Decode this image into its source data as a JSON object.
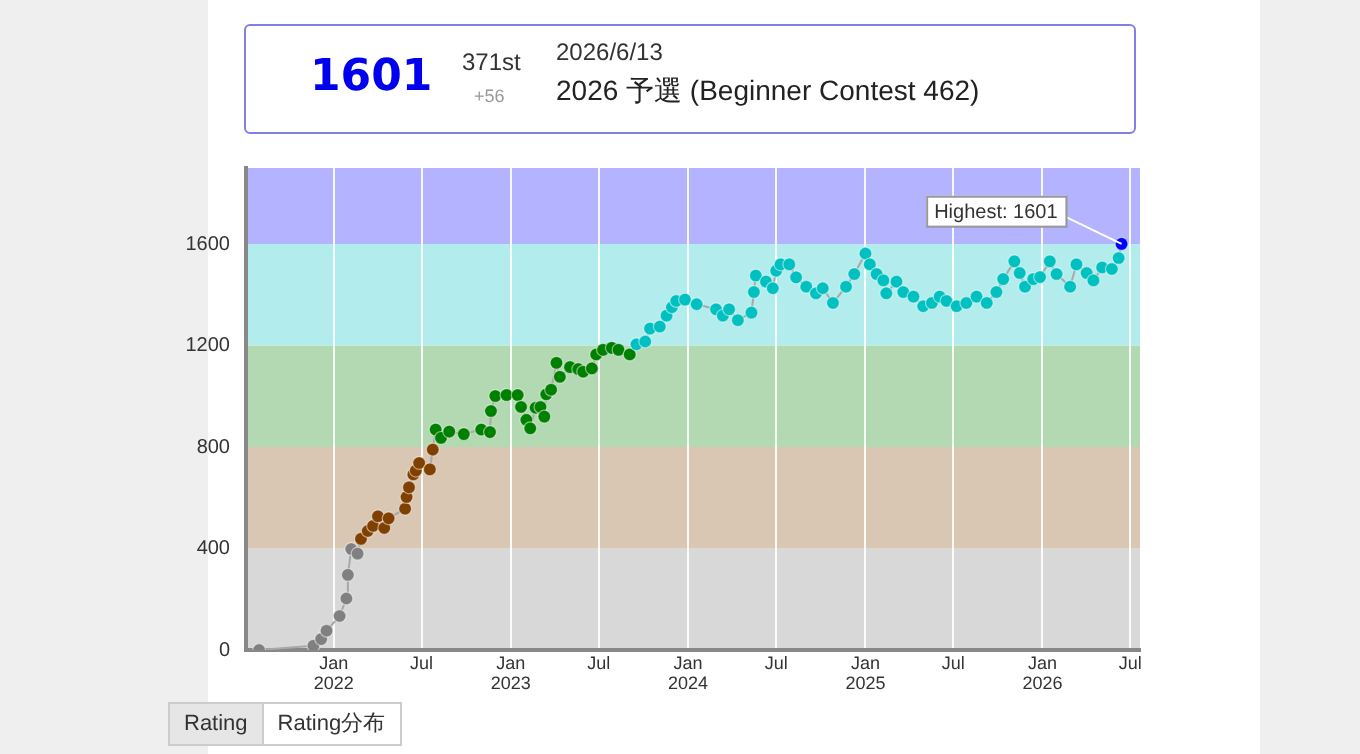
{
  "chart_data": {
    "type": "line",
    "title": "2026 予選 (Beginner Contest 462)",
    "annotations": [
      "1601",
      "371st",
      "+56",
      "2026/6/13",
      {
        "text": "Highest: 1601",
        "x": "2026-06-13",
        "y": 1601
      },
      "Rating",
      "Rating分布"
    ],
    "xlim": [
      "2021-07-04",
      "2026-07-21"
    ],
    "xticks": [
      {
        "value": "2022-01-01",
        "label": "Jan 2022"
      },
      {
        "value": "2022-07-01",
        "label": "Jul"
      },
      {
        "value": "2023-01-01",
        "label": "Jan 2023"
      },
      {
        "value": "2023-07-01",
        "label": "Jul"
      },
      {
        "value": "2024-01-01",
        "label": "Jan 2024"
      },
      {
        "value": "2024-07-01",
        "label": "Jul"
      },
      {
        "value": "2025-01-01",
        "label": "Jan 2025"
      },
      {
        "value": "2025-07-01",
        "label": "Jul"
      },
      {
        "value": "2026-01-01",
        "label": "Jan 2026"
      },
      {
        "value": "2026-07-01",
        "label": "Jul"
      }
    ],
    "ylim": [
      0,
      1900
    ],
    "yticks": [
      0,
      400,
      800,
      1200,
      1600
    ],
    "grid": "x",
    "legend": false,
    "marker": "circle",
    "line_style": "solid",
    "bands": [
      {
        "axis": "y",
        "from": 0,
        "to": 400,
        "color": "#d8d8d8"
      },
      {
        "axis": "y",
        "from": 400,
        "to": 800,
        "color": "#d9c6b3"
      },
      {
        "axis": "y",
        "from": 800,
        "to": 1200,
        "color": "#b3d9b3"
      },
      {
        "axis": "y",
        "from": 1200,
        "to": 1600,
        "color": "#b3ecec"
      },
      {
        "axis": "y",
        "from": 1600,
        "to": 1900,
        "color": "#b3b3ff"
      }
    ],
    "series": [
      {
        "color": "#a8a8a8",
        "x": [
          "2021-07-31",
          "2021-11-20",
          "2021-12-06",
          "2021-12-17",
          "2022-01-13",
          "2022-01-27",
          "2022-01-30",
          "2022-02-06",
          "2022-02-19",
          "2022-02-26",
          "2022-03-12",
          "2022-03-23",
          "2022-04-02",
          "2022-04-15",
          "2022-04-24",
          "2022-05-28",
          "2022-05-31",
          "2022-06-05",
          "2022-06-14",
          "2022-06-19",
          "2022-06-26",
          "2022-07-18",
          "2022-07-24",
          "2022-07-30",
          "2022-08-10",
          "2022-08-27",
          "2022-09-26",
          "2022-11-01",
          "2022-11-19",
          "2022-11-21",
          "2022-11-30",
          "2022-12-23",
          "2023-01-15",
          "2023-01-22",
          "2023-02-02",
          "2023-02-10",
          "2023-02-21",
          "2023-03-03",
          "2023-03-11",
          "2023-03-15",
          "2023-03-25",
          "2023-04-05",
          "2023-04-12",
          "2023-05-03",
          "2023-05-20",
          "2023-05-30",
          "2023-06-17",
          "2023-06-26",
          "2023-07-10",
          "2023-07-28",
          "2023-08-11",
          "2023-09-03",
          "2023-09-17",
          "2023-10-05",
          "2023-10-15",
          "2023-11-04",
          "2023-11-18",
          "2023-11-29",
          "2023-12-08",
          "2023-12-26",
          "2024-01-19",
          "2024-02-28",
          "2024-03-13",
          "2024-03-26",
          "2024-04-13",
          "2024-05-11",
          "2024-05-16",
          "2024-05-20",
          "2024-06-10",
          "2024-06-24",
          "2024-07-01",
          "2024-07-10",
          "2024-07-28",
          "2024-08-11",
          "2024-09-01",
          "2024-09-21",
          "2024-10-05",
          "2024-10-26",
          "2024-11-22",
          "2024-12-09",
          "2025-01-01",
          "2025-01-10",
          "2025-01-24",
          "2025-02-07",
          "2025-02-13",
          "2025-03-06",
          "2025-03-20",
          "2025-04-10",
          "2025-04-30",
          "2025-05-18",
          "2025-06-03",
          "2025-06-17",
          "2025-07-08",
          "2025-07-28",
          "2025-08-18",
          "2025-09-08",
          "2025-09-28",
          "2025-10-12",
          "2025-11-04",
          "2025-11-15",
          "2025-11-26",
          "2025-12-13",
          "2025-12-27",
          "2026-01-16",
          "2026-01-30",
          "2026-02-27",
          "2026-03-12",
          "2026-04-02",
          "2026-04-16",
          "2026-05-04",
          "2026-05-24",
          "2026-06-07",
          "2026-06-13"
        ],
        "values": [
          0,
          17,
          43,
          76,
          134,
          203,
          296,
          398,
          380,
          438,
          469,
          489,
          527,
          481,
          519,
          557,
          603,
          641,
          692,
          707,
          737,
          712,
          790,
          869,
          836,
          861,
          851,
          869,
          859,
          942,
          1001,
          1005,
          1005,
          958,
          907,
          874,
          955,
          958,
          920,
          1008,
          1026,
          1132,
          1077,
          1115,
          1107,
          1097,
          1110,
          1165,
          1183,
          1191,
          1183,
          1165,
          1205,
          1216,
          1267,
          1275,
          1318,
          1351,
          1376,
          1381,
          1363,
          1343,
          1318,
          1343,
          1300,
          1330,
          1411,
          1476,
          1452,
          1426,
          1495,
          1520,
          1520,
          1469,
          1432,
          1406,
          1426,
          1368,
          1432,
          1482,
          1563,
          1520,
          1482,
          1457,
          1406,
          1452,
          1411,
          1393,
          1355,
          1368,
          1393,
          1376,
          1355,
          1368,
          1393,
          1368,
          1411,
          1462,
          1532,
          1486,
          1432,
          1462,
          1470,
          1532,
          1482,
          1432,
          1520,
          1486,
          1457,
          1508,
          1502,
          1545,
          1601
        ],
        "colors": [
          "#808080",
          "#808080",
          "#808080",
          "#808080",
          "#808080",
          "#808080",
          "#808080",
          "#808080",
          "#808080",
          "#804000",
          "#804000",
          "#804000",
          "#804000",
          "#804000",
          "#804000",
          "#804000",
          "#804000",
          "#804000",
          "#804000",
          "#804000",
          "#804000",
          "#804000",
          "#804000",
          "#008000",
          "#008000",
          "#008000",
          "#008000",
          "#008000",
          "#008000",
          "#008000",
          "#008000",
          "#008000",
          "#008000",
          "#008000",
          "#008000",
          "#008000",
          "#008000",
          "#008000",
          "#008000",
          "#008000",
          "#008000",
          "#008000",
          "#008000",
          "#008000",
          "#008000",
          "#008000",
          "#008000",
          "#008000",
          "#008000",
          "#008000",
          "#008000",
          "#008000",
          "#00c0c0",
          "#00c0c0",
          "#00c0c0",
          "#00c0c0",
          "#00c0c0",
          "#00c0c0",
          "#00c0c0",
          "#00c0c0",
          "#00c0c0",
          "#00c0c0",
          "#00c0c0",
          "#00c0c0",
          "#00c0c0",
          "#00c0c0",
          "#00c0c0",
          "#00c0c0",
          "#00c0c0",
          "#00c0c0",
          "#00c0c0",
          "#00c0c0",
          "#00c0c0",
          "#00c0c0",
          "#00c0c0",
          "#00c0c0",
          "#00c0c0",
          "#00c0c0",
          "#00c0c0",
          "#00c0c0",
          "#00c0c0",
          "#00c0c0",
          "#00c0c0",
          "#00c0c0",
          "#00c0c0",
          "#00c0c0",
          "#00c0c0",
          "#00c0c0",
          "#00c0c0",
          "#00c0c0",
          "#00c0c0",
          "#00c0c0",
          "#00c0c0",
          "#00c0c0",
          "#00c0c0",
          "#00c0c0",
          "#00c0c0",
          "#00c0c0",
          "#00c0c0",
          "#00c0c0",
          "#00c0c0",
          "#00c0c0",
          "#00c0c0",
          "#00c0c0",
          "#00c0c0",
          "#00c0c0",
          "#00c0c0",
          "#00c0c0",
          "#00c0c0",
          "#00c0c0",
          "#00c0c0",
          "#00c0c0",
          "#0000ff"
        ]
      }
    ]
  }
}
